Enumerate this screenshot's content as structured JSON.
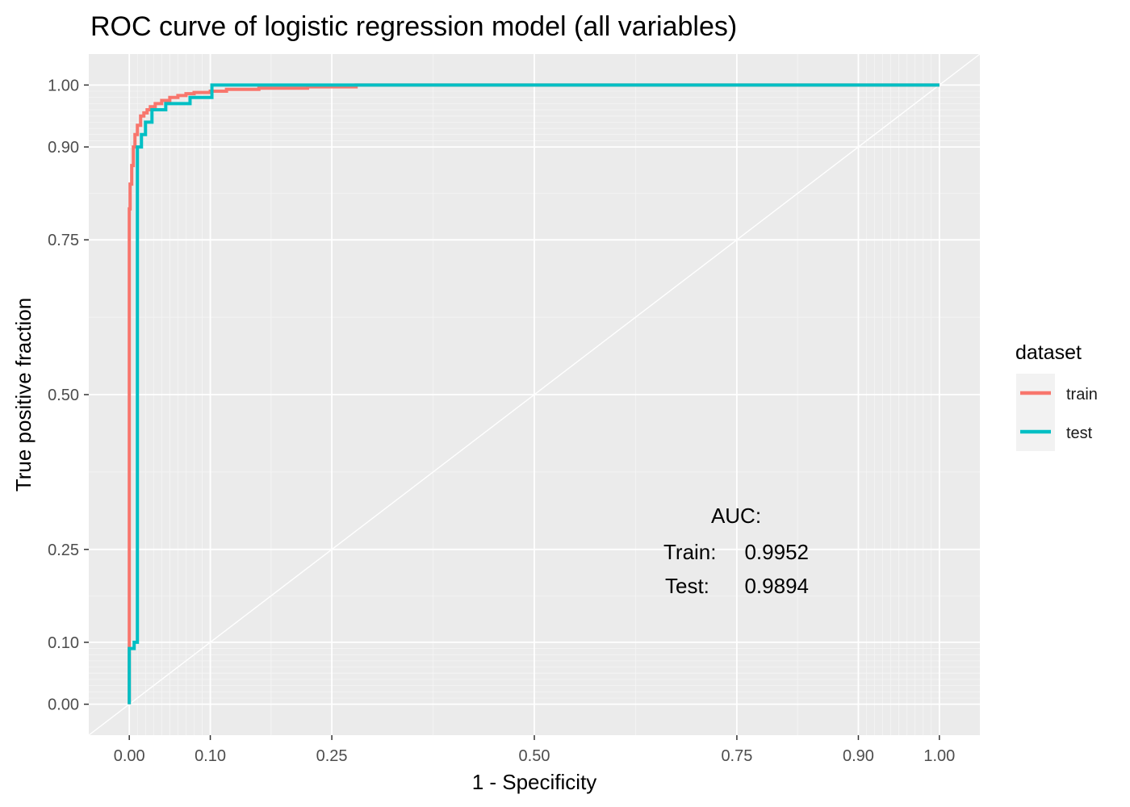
{
  "chart_data": {
    "type": "line",
    "title": "ROC curve of logistic regression model (all variables)",
    "xlabel": "1 - Specificity",
    "ylabel": "True positive fraction",
    "xlim": [
      -0.05,
      1.05
    ],
    "ylim": [
      -0.05,
      1.05
    ],
    "x_ticks": [
      0.0,
      0.1,
      0.25,
      0.5,
      0.75,
      0.9,
      1.0
    ],
    "x_tick_labels": [
      "0.00",
      "0.10",
      "0.25",
      "0.50",
      "0.75",
      "0.90",
      "1.00"
    ],
    "y_ticks": [
      0.0,
      0.1,
      0.25,
      0.5,
      0.75,
      0.9,
      1.0
    ],
    "y_tick_labels": [
      "0.00",
      "0.10",
      "0.25",
      "0.50",
      "0.75",
      "0.90",
      "1.00"
    ],
    "grid": true,
    "reference_line": [
      [
        0,
        0
      ],
      [
        1,
        1
      ]
    ],
    "legend": {
      "title": "dataset",
      "position": "right",
      "entries": [
        {
          "label": "train",
          "color": "#F8766D"
        },
        {
          "label": "test",
          "color": "#00BFC4"
        }
      ]
    },
    "series": [
      {
        "name": "train",
        "color": "#F8766D",
        "x": [
          0.0,
          0.0,
          0.0,
          0.001,
          0.001,
          0.003,
          0.003,
          0.005,
          0.005,
          0.007,
          0.007,
          0.01,
          0.01,
          0.014,
          0.014,
          0.018,
          0.018,
          0.022,
          0.022,
          0.026,
          0.026,
          0.032,
          0.032,
          0.04,
          0.04,
          0.05,
          0.05,
          0.06,
          0.06,
          0.07,
          0.07,
          0.08,
          0.08,
          0.1,
          0.1,
          0.12,
          0.12,
          0.16,
          0.16,
          0.22,
          0.22,
          0.28,
          0.28,
          1.0
        ],
        "y": [
          0.0,
          0.15,
          0.8,
          0.8,
          0.84,
          0.84,
          0.87,
          0.87,
          0.9,
          0.9,
          0.92,
          0.92,
          0.935,
          0.935,
          0.95,
          0.95,
          0.955,
          0.955,
          0.96,
          0.96,
          0.965,
          0.965,
          0.97,
          0.97,
          0.975,
          0.975,
          0.98,
          0.98,
          0.983,
          0.983,
          0.986,
          0.986,
          0.988,
          0.988,
          0.99,
          0.99,
          0.993,
          0.993,
          0.995,
          0.995,
          0.997,
          0.997,
          1.0,
          1.0
        ]
      },
      {
        "name": "test",
        "color": "#00BFC4",
        "x": [
          0.0,
          0.0,
          0.006,
          0.006,
          0.01,
          0.01,
          0.015,
          0.015,
          0.02,
          0.02,
          0.028,
          0.028,
          0.045,
          0.045,
          0.075,
          0.075,
          0.102,
          0.102,
          1.0
        ],
        "y": [
          0.0,
          0.09,
          0.09,
          0.1,
          0.1,
          0.9,
          0.9,
          0.92,
          0.92,
          0.94,
          0.94,
          0.96,
          0.96,
          0.97,
          0.97,
          0.98,
          0.98,
          1.0,
          1.0
        ]
      }
    ],
    "annotation": {
      "heading": "AUC:",
      "train_label": "Train:",
      "train_value": "0.9952",
      "test_label": "Test:",
      "test_value": "0.9894"
    }
  }
}
